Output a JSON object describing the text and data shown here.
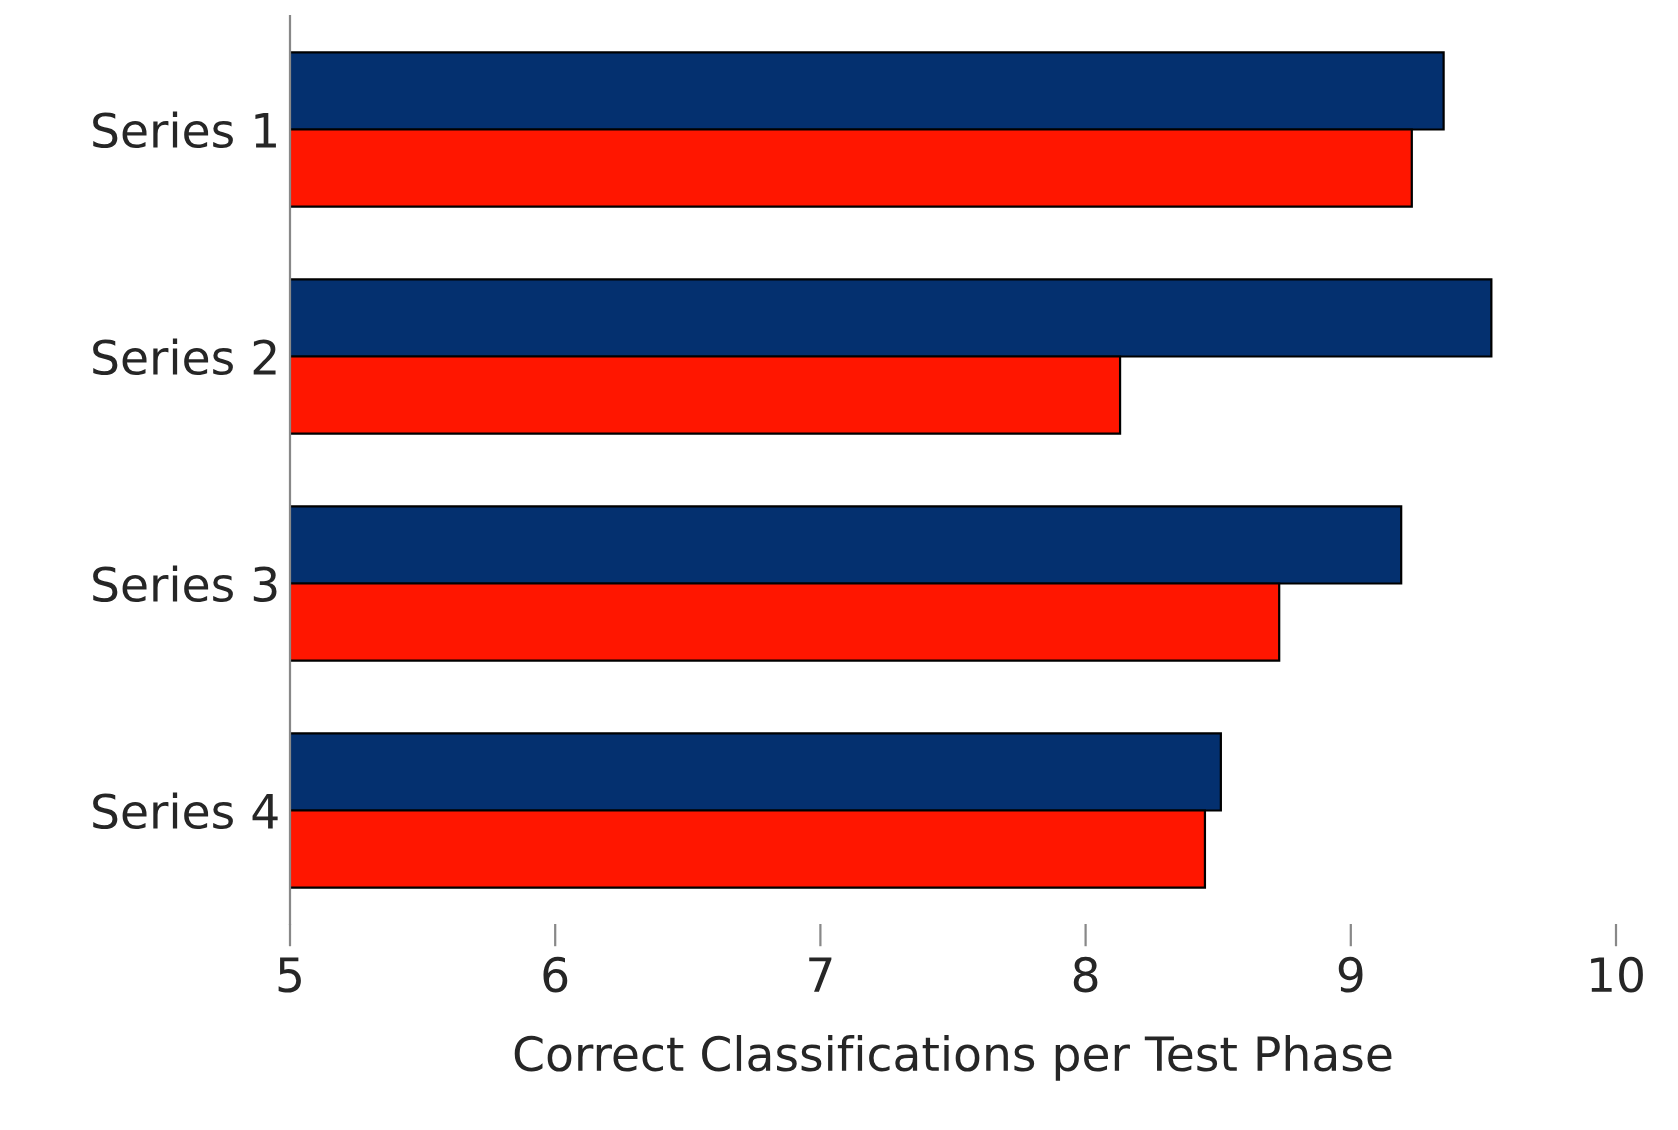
{
  "chart_data": {
    "type": "bar",
    "orientation": "horizontal",
    "xlabel": "Correct Classifications per Test Phase",
    "categories": [
      "Series 1",
      "Series 2",
      "Series 3",
      "Series 4"
    ],
    "series": [
      {
        "color": "#04306f",
        "values": [
          9.35,
          9.53,
          9.19,
          8.51
        ]
      },
      {
        "color": "#ff1600",
        "values": [
          9.23,
          8.13,
          8.73,
          8.45
        ]
      }
    ],
    "xlim": [
      5,
      10
    ],
    "xticks": [
      5,
      6,
      7,
      8,
      9,
      10
    ],
    "grid": false,
    "legend": false
  }
}
